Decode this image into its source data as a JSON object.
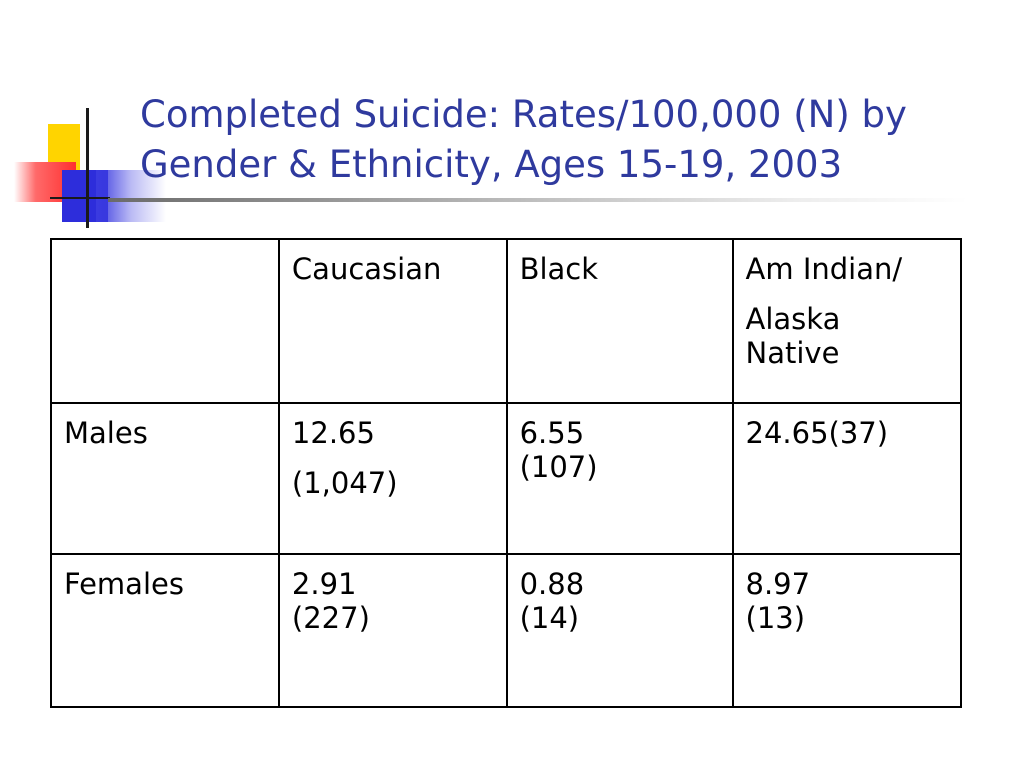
{
  "slide": {
    "title_line1": "Completed Suicide: Rates/100,000 (N) by",
    "title_line2": "Gender & Ethnicity, Ages 15-19, 2003",
    "colors": {
      "title": "#2f3a9e",
      "deco_yellow": "#ffd400",
      "deco_red": "#ff2f2f",
      "deco_blue": "#2d2ddb"
    },
    "decoration_icon": "slide-logo-squares"
  },
  "table": {
    "header": {
      "blank": "",
      "col1": "Caucasian",
      "col2": "Black",
      "col3_line1": "Am Indian/",
      "col3_line2": "Alaska",
      "col3_line3": "Native"
    },
    "rows": [
      {
        "label": "Males",
        "caucasian_rate": "12.65",
        "caucasian_n": "(1,047)",
        "black_rate": "6.55",
        "black_n": "(107)",
        "amindian": "24.65(37)"
      },
      {
        "label": "Females",
        "caucasian_rate": "2.91",
        "caucasian_n": "(227)",
        "black_rate": "0.88",
        "black_n": "(14)",
        "amindian_rate": "8.97",
        "amindian_n": "(13)"
      }
    ]
  }
}
